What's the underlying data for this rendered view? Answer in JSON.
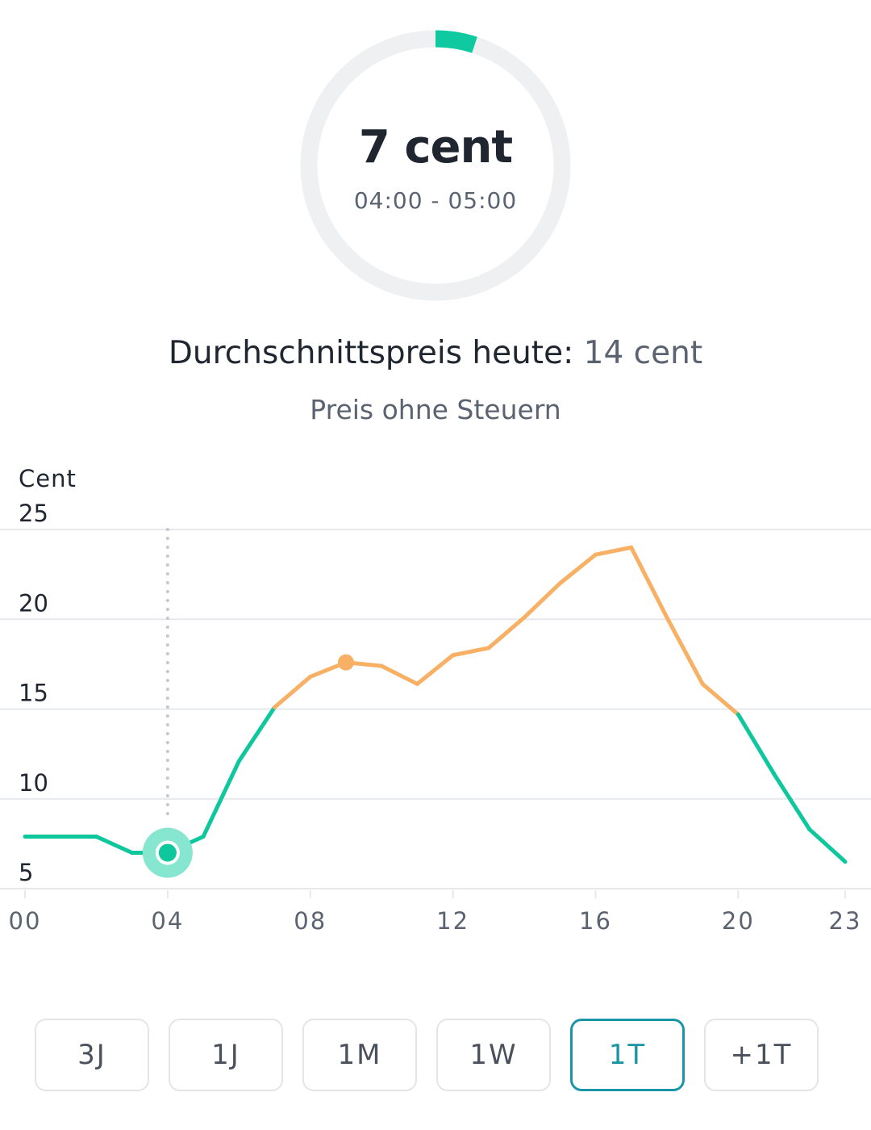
{
  "gauge": {
    "value_label": "7 cent",
    "time_range": "04:00 - 05:00",
    "fill_fraction": 0.05,
    "color": "#0fcaa0",
    "track_color": "#eff0f2"
  },
  "average": {
    "label": "Durchschnittspreis heute:",
    "value": "14 cent"
  },
  "subtitle": "Preis ohne Steuern",
  "chart_data": {
    "type": "line",
    "ylabel": "Cent",
    "ylim": [
      5,
      25
    ],
    "yticks": [
      "25",
      "20",
      "15",
      "10",
      "5"
    ],
    "ytick_values": [
      25,
      20,
      15,
      10,
      5
    ],
    "xlim": [
      0,
      23
    ],
    "xticks": [
      "00",
      "04",
      "08",
      "12",
      "16",
      "20",
      "23"
    ],
    "xtick_values": [
      0,
      4,
      8,
      12,
      16,
      20,
      23
    ],
    "x": [
      0,
      1,
      2,
      3,
      4,
      5,
      6,
      7,
      8,
      9,
      10,
      11,
      12,
      13,
      14,
      15,
      16,
      17,
      18,
      19,
      20,
      21,
      22,
      23
    ],
    "values": [
      7.9,
      7.9,
      7.9,
      7.0,
      7.0,
      7.9,
      12.1,
      15.1,
      16.8,
      17.6,
      17.4,
      16.4,
      18.0,
      18.4,
      20.1,
      22.0,
      23.6,
      24.0,
      20.1,
      16.4,
      14.7,
      11.4,
      8.3,
      6.5
    ],
    "threshold": 14,
    "color_below": "#0fc79d",
    "color_above": "#f7b064",
    "selected_hour": 4,
    "marked_hour": 9,
    "grid": true
  },
  "range_buttons": [
    {
      "label": "3J",
      "active": false
    },
    {
      "label": "1J",
      "active": false
    },
    {
      "label": "1M",
      "active": false
    },
    {
      "label": "1W",
      "active": false
    },
    {
      "label": "1T",
      "active": true
    },
    {
      "label": "+1T",
      "active": false
    }
  ]
}
